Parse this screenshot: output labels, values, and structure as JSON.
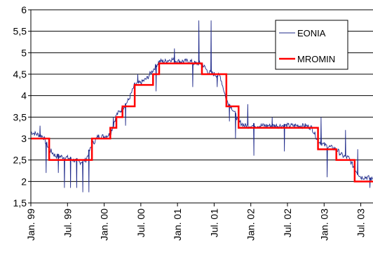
{
  "chart_data": {
    "type": "line",
    "title": "",
    "xlabel": "",
    "ylabel": "",
    "ylim": [
      1.5,
      6
    ],
    "yticks": [
      "1,5",
      "2",
      "2,5",
      "3",
      "3,5",
      "4",
      "4,5",
      "5",
      "5,5",
      "6"
    ],
    "ytick_values": [
      1.5,
      2,
      2.5,
      3,
      3.5,
      4,
      4.5,
      5,
      5.5,
      6
    ],
    "xlim": [
      "1999-01",
      "2003-09"
    ],
    "xticks": [
      "Jan. 99",
      "Jul. 99",
      "Jan. 00",
      "Jul. 00",
      "Jan. 01",
      "Jul. 01",
      "Jan. 02",
      "Jul. 02",
      "Jan. 03",
      "Jul. 03"
    ],
    "xtick_dates": [
      "1999-01",
      "1999-07",
      "2000-01",
      "2000-07",
      "2001-01",
      "2001-07",
      "2002-01",
      "2002-07",
      "2003-01",
      "2003-07"
    ],
    "grid": "horizontal",
    "legend": "top-right",
    "series": [
      {
        "name": "EONIA",
        "color": "#1f2a8a",
        "style": "thin-noisy-line",
        "points": [
          [
            "1999-01",
            3.15
          ],
          [
            "1999-02",
            3.1
          ],
          [
            "1999-03",
            3.05
          ],
          [
            "1999-04",
            2.75
          ],
          [
            "1999-05",
            2.6
          ],
          [
            "1999-06",
            2.58
          ],
          [
            "1999-07",
            2.55
          ],
          [
            "1999-08",
            2.5
          ],
          [
            "1999-09",
            2.45
          ],
          [
            "1999-10",
            2.5
          ],
          [
            "1999-11",
            2.85
          ],
          [
            "1999-12",
            3.05
          ],
          [
            "2000-01",
            3.05
          ],
          [
            "2000-02",
            3.1
          ],
          [
            "2000-03",
            3.55
          ],
          [
            "2000-04",
            3.7
          ],
          [
            "2000-05",
            3.9
          ],
          [
            "2000-06",
            4.25
          ],
          [
            "2000-07",
            4.3
          ],
          [
            "2000-08",
            4.4
          ],
          [
            "2000-09",
            4.6
          ],
          [
            "2000-10",
            4.8
          ],
          [
            "2000-11",
            4.8
          ],
          [
            "2000-12",
            4.85
          ],
          [
            "2001-01",
            4.8
          ],
          [
            "2001-02",
            4.8
          ],
          [
            "2001-03",
            4.8
          ],
          [
            "2001-04",
            4.75
          ],
          [
            "2001-05",
            4.75
          ],
          [
            "2001-06",
            4.55
          ],
          [
            "2001-07",
            4.5
          ],
          [
            "2001-08",
            4.45
          ],
          [
            "2001-09",
            3.9
          ],
          [
            "2001-10",
            3.7
          ],
          [
            "2001-11",
            3.4
          ],
          [
            "2001-12",
            3.3
          ],
          [
            "2002-01",
            3.3
          ],
          [
            "2002-02",
            3.3
          ],
          [
            "2002-03",
            3.3
          ],
          [
            "2002-04",
            3.3
          ],
          [
            "2002-05",
            3.3
          ],
          [
            "2002-06",
            3.3
          ],
          [
            "2002-07",
            3.3
          ],
          [
            "2002-08",
            3.3
          ],
          [
            "2002-09",
            3.3
          ],
          [
            "2002-10",
            3.3
          ],
          [
            "2002-11",
            3.25
          ],
          [
            "2002-12",
            2.95
          ],
          [
            "2003-01",
            2.85
          ],
          [
            "2003-02",
            2.8
          ],
          [
            "2003-03",
            2.75
          ],
          [
            "2003-04",
            2.6
          ],
          [
            "2003-05",
            2.55
          ],
          [
            "2003-06",
            2.3
          ],
          [
            "2003-07",
            2.1
          ],
          [
            "2003-08",
            2.1
          ],
          [
            "2003-09",
            2.05
          ]
        ],
        "spikes": [
          [
            "1999-02",
            3.3
          ],
          [
            "1999-03",
            2.2
          ],
          [
            "1999-05",
            2.2
          ],
          [
            "1999-06",
            1.85
          ],
          [
            "1999-07",
            1.85
          ],
          [
            "1999-08",
            1.85
          ],
          [
            "1999-09",
            1.75
          ],
          [
            "1999-10",
            1.75
          ],
          [
            "2000-02",
            3.5
          ],
          [
            "2000-04",
            3.3
          ],
          [
            "2000-06",
            4.5
          ],
          [
            "2000-09",
            4.1
          ],
          [
            "2000-12",
            5.1
          ],
          [
            "2001-03",
            4.2
          ],
          [
            "2001-04",
            5.75
          ],
          [
            "2001-06",
            5.75
          ],
          [
            "2001-07",
            4.2
          ],
          [
            "2001-09",
            3.4
          ],
          [
            "2001-10",
            3.0
          ],
          [
            "2001-12",
            3.8
          ],
          [
            "2002-01",
            2.6
          ],
          [
            "2002-04",
            3.5
          ],
          [
            "2002-06",
            2.7
          ],
          [
            "2002-12",
            3.5
          ],
          [
            "2003-01",
            2.1
          ],
          [
            "2003-04",
            3.2
          ],
          [
            "2003-06",
            2.75
          ],
          [
            "2003-08",
            1.85
          ]
        ]
      },
      {
        "name": "MROMIN",
        "color": "#ff0000",
        "style": "step",
        "steps": [
          [
            "1999-01",
            3.0
          ],
          [
            "1999-04",
            2.5
          ],
          [
            "1999-11",
            3.0
          ],
          [
            "2000-02",
            3.25
          ],
          [
            "2000-03",
            3.5
          ],
          [
            "2000-04",
            3.75
          ],
          [
            "2000-06",
            4.25
          ],
          [
            "2000-09",
            4.5
          ],
          [
            "2000-10",
            4.75
          ],
          [
            "2001-05",
            4.5
          ],
          [
            "2001-09",
            3.75
          ],
          [
            "2001-11",
            3.25
          ],
          [
            "2002-12",
            2.75
          ],
          [
            "2003-03",
            2.5
          ],
          [
            "2003-06",
            2.0
          ],
          [
            "2003-09",
            2.0
          ]
        ]
      }
    ]
  }
}
